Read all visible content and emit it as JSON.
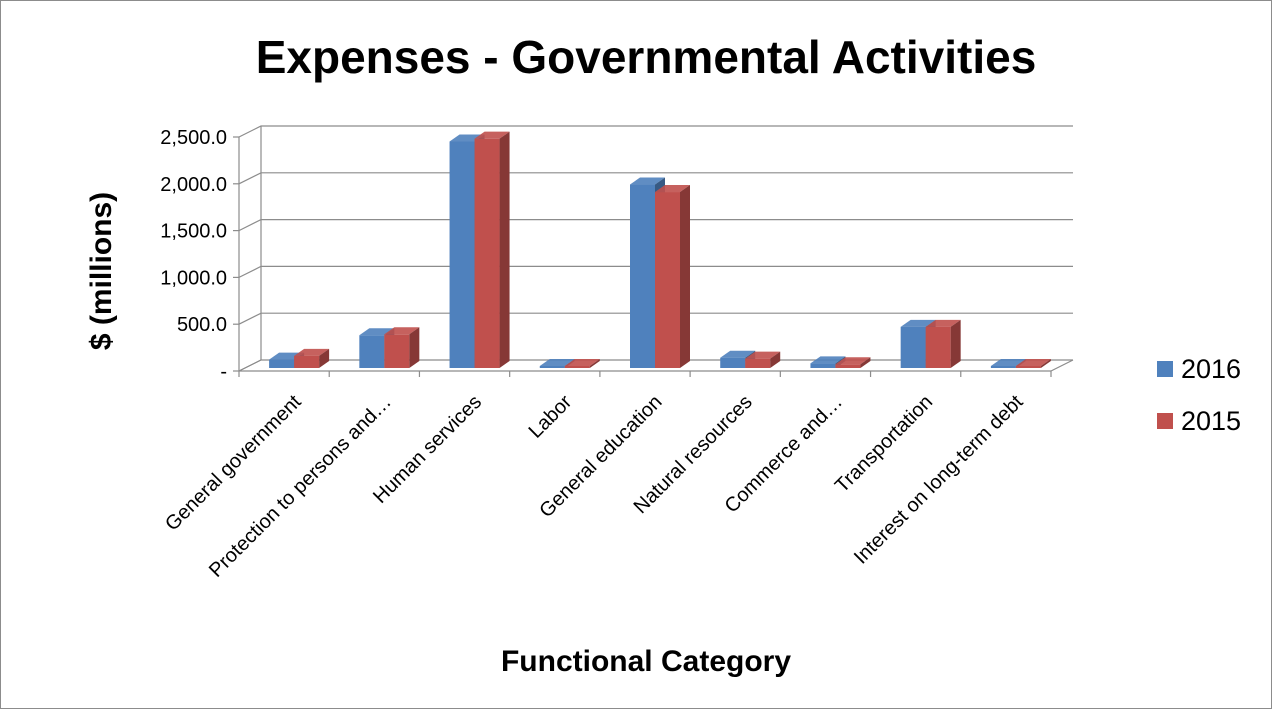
{
  "chart_data": {
    "type": "bar",
    "title": "Expenses - Governmental Activities",
    "xlabel": "Functional Category",
    "ylabel": "$ (millions)",
    "ylim": [
      0,
      2500
    ],
    "yticks": [
      0,
      500,
      1000,
      1500,
      2000,
      2500
    ],
    "ytick_labels": [
      "-",
      "500.0",
      "1,000.0",
      "1,500.0",
      "2,000.0",
      "2,500.0"
    ],
    "categories": [
      "General government",
      "Protection to persons and…",
      "Human services",
      "Labor",
      "General education",
      "Natural resources",
      "Commerce and…",
      "Transportation",
      "Interest on long-term debt"
    ],
    "series": [
      {
        "name": "2016",
        "color": "#4F81BD",
        "values": [
          90,
          350,
          2420,
          15,
          1960,
          110,
          50,
          440,
          5
        ]
      },
      {
        "name": "2015",
        "color": "#C0504D",
        "values": [
          130,
          360,
          2450,
          15,
          1880,
          100,
          40,
          440,
          5
        ]
      }
    ],
    "legend_position": "right",
    "grid": true
  }
}
